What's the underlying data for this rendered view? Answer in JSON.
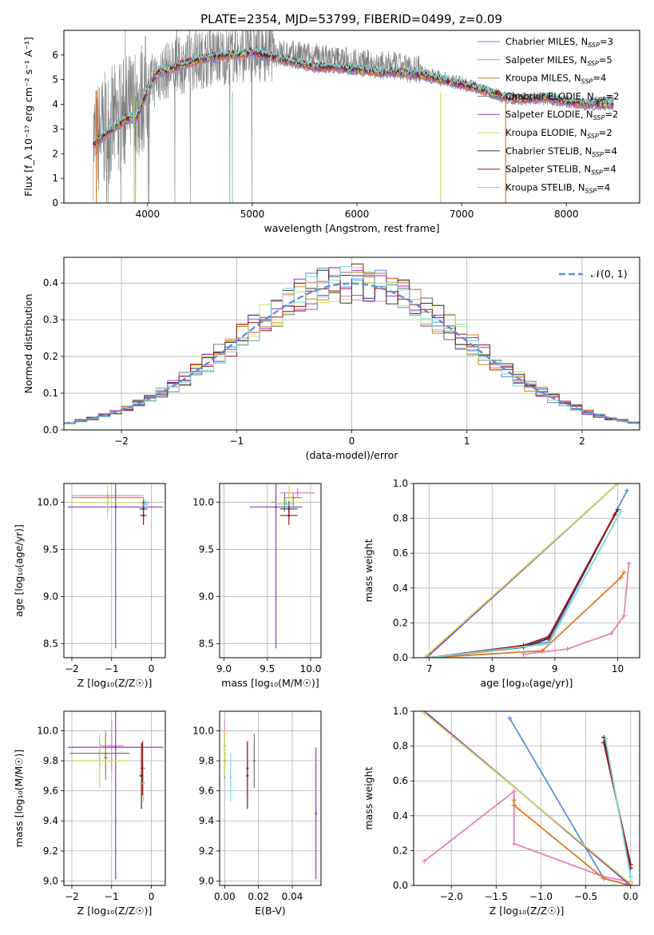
{
  "figure": {
    "title": "PLATE=2354, MJD=53799, FIBERID=0499, z=0.09"
  },
  "colors": {
    "Chabrier MILES": "#5f8fdc",
    "Salpeter MILES": "#e581bb",
    "Kroupa MILES": "#e07a1f",
    "Chabrier ELODIE": "#777777",
    "Salpeter ELODIE": "#9b30c8",
    "Kroupa ELODIE": "#c6e05a",
    "Chabrier STELIB": "#333333",
    "Salpeter STELIB": "#a01418",
    "Kroupa STELIB": "#7ed8d8"
  },
  "chart_data": [
    {
      "id": "spectrum",
      "type": "line",
      "xlabel": "wavelength [Angstrom, rest frame]",
      "ylabel": "Flux [f_λ 10⁻¹⁷ erg cm⁻² s⁻¹ A⁻¹]",
      "xlim": [
        3200,
        8700
      ],
      "ylim": [
        0,
        7
      ],
      "xticks": [
        "4000",
        "5000",
        "6000",
        "7000",
        "8000"
      ],
      "yticks": [
        "0",
        "1",
        "2",
        "3",
        "4",
        "5",
        "6"
      ],
      "legend_position": "right",
      "legend": [
        "Chabrier MILES, N_SSP=3",
        "Salpeter MILES, N_SSP=5",
        "Kroupa MILES, N_SSP=4",
        "Chabrier ELODIE, N_SSP=2",
        "Salpeter ELODIE, N_SSP=2",
        "Kroupa ELODIE, N_SSP=2",
        "Chabrier STELIB, N_SSP=4",
        "Salpeter STELIB, N_SSP=4",
        "Kroupa STELIB, N_SSP=4"
      ],
      "data_color": "#808080",
      "data": {
        "x": [
          3500,
          3600,
          3700,
          3800,
          3900,
          4000,
          4100,
          4200,
          4400,
          4600,
          4800,
          5000,
          5200,
          5400,
          5600,
          5800,
          6000,
          6200,
          6400,
          6600,
          6800,
          7000,
          7200,
          7400,
          7600,
          7800,
          8000,
          8200,
          8400
        ],
        "y": [
          2.5,
          3.0,
          3.3,
          3.7,
          3.9,
          4.7,
          5.2,
          5.4,
          5.7,
          5.9,
          6.0,
          6.1,
          6.1,
          6.0,
          5.9,
          5.8,
          5.7,
          5.6,
          5.5,
          5.4,
          5.1,
          4.9,
          4.6,
          4.3,
          4.2,
          4.2,
          4.1,
          4.0,
          4.1
        ]
      },
      "model": {
        "x": [
          3500,
          3600,
          3700,
          3800,
          3900,
          4000,
          4100,
          4200,
          4400,
          4600,
          4800,
          5000,
          5200,
          5400,
          5600,
          5800,
          6000,
          6200,
          6400,
          6600,
          6800,
          7000,
          7200,
          7400,
          7600,
          7800,
          8000,
          8200,
          8400
        ],
        "y": [
          2.4,
          2.8,
          3.1,
          3.4,
          3.5,
          4.6,
          5.3,
          5.4,
          5.7,
          5.9,
          6.0,
          6.1,
          5.9,
          5.7,
          5.5,
          5.5,
          5.4,
          5.3,
          5.3,
          5.2,
          5.0,
          4.8,
          4.6,
          4.3,
          4.2,
          4.3,
          4.1,
          4.0,
          4.0
        ]
      }
    },
    {
      "id": "residuals",
      "type": "line",
      "xlabel": "(data-model)/error",
      "ylabel": "Normed distribution",
      "xlim": [
        -2.5,
        2.5
      ],
      "ylim": [
        0,
        0.47
      ],
      "xticks": [
        "−2",
        "−1",
        "0",
        "1",
        "2"
      ],
      "yticks": [
        "0.0",
        "0.1",
        "0.2",
        "0.3",
        "0.4"
      ],
      "grid": true,
      "legend_position": "top-right",
      "legend": [
        "𝒩(0, 1)"
      ],
      "normal_curve": {
        "mean": 0,
        "sigma": 1,
        "color": "#5f8fdc"
      }
    },
    {
      "id": "age-vs-z",
      "type": "scatter",
      "xlabel": "Z [log₁₀(Z/Z☉)]",
      "ylabel": "age  [log₁₀(age/yr)]",
      "xlim": [
        -2.2,
        0.35
      ],
      "ylim": [
        8.35,
        10.2
      ],
      "xticks": [
        "−2",
        "−1",
        "0"
      ],
      "yticks": [
        "8.5",
        "9.0",
        "9.5",
        "10.0"
      ],
      "grid": true,
      "points": [
        {
          "model": "Chabrier MILES",
          "x": -0.2,
          "y": 10.0,
          "xerr": 0.15,
          "yerr": 0.05
        },
        {
          "model": "Salpeter MILES",
          "x": -1.1,
          "y": 10.07,
          "xerr": 0.9,
          "yerr": 0.05
        },
        {
          "model": "Kroupa MILES",
          "x": -1.1,
          "y": 10.05,
          "xerr": 0.9,
          "yerr": 0.05
        },
        {
          "model": "Chabrier ELODIE",
          "x": -1.1,
          "y": 10.0,
          "xerr": 0.9,
          "yerr": 0.1
        },
        {
          "model": "Salpeter ELODIE",
          "x": -0.9,
          "y": 9.95,
          "xerr": 1.2,
          "yerr": 1.5
        },
        {
          "model": "Kroupa ELODIE",
          "x": -1.1,
          "y": 10.0,
          "xerr": 0.9,
          "yerr": 0.18
        },
        {
          "model": "Chabrier STELIB",
          "x": -0.2,
          "y": 9.93,
          "xerr": 0.1,
          "yerr": 0.08
        },
        {
          "model": "Salpeter STELIB",
          "x": -0.2,
          "y": 9.86,
          "xerr": 0.08,
          "yerr": 0.1
        },
        {
          "model": "Kroupa STELIB",
          "x": -0.15,
          "y": 9.98,
          "xerr": 0.1,
          "yerr": 0.05
        }
      ]
    },
    {
      "id": "age-vs-mass",
      "type": "scatter",
      "xlabel": "mass [log₁₀(M/M☉)]",
      "ylabel": "",
      "xlim": [
        8.95,
        10.12
      ],
      "ylim": [
        8.35,
        10.2
      ],
      "xticks": [
        "9.0",
        "9.5",
        "10.0"
      ],
      "yticks": [
        "8.5",
        "9.0",
        "9.5",
        "10.0"
      ],
      "grid": true,
      "points": [
        {
          "model": "Chabrier MILES",
          "x": 9.8,
          "y": 10.0,
          "xerr": 0.1,
          "yerr": 0.05
        },
        {
          "model": "Salpeter MILES",
          "x": 9.85,
          "y": 10.1,
          "xerr": 0.2,
          "yerr": 0.05
        },
        {
          "model": "Kroupa MILES",
          "x": 9.8,
          "y": 10.05,
          "xerr": 0.1,
          "yerr": 0.05
        },
        {
          "model": "Chabrier ELODIE",
          "x": 9.7,
          "y": 10.0,
          "xerr": 0.15,
          "yerr": 0.1
        },
        {
          "model": "Salpeter ELODIE",
          "x": 9.6,
          "y": 9.95,
          "xerr": 0.3,
          "yerr": 1.5
        },
        {
          "model": "Kroupa ELODIE",
          "x": 9.75,
          "y": 10.0,
          "xerr": 0.15,
          "yerr": 0.18
        },
        {
          "model": "Chabrier STELIB",
          "x": 9.75,
          "y": 9.93,
          "xerr": 0.1,
          "yerr": 0.08
        },
        {
          "model": "Salpeter STELIB",
          "x": 9.75,
          "y": 9.86,
          "xerr": 0.1,
          "yerr": 0.1
        },
        {
          "model": "Kroupa STELIB",
          "x": 9.72,
          "y": 9.98,
          "xerr": 0.1,
          "yerr": 0.05
        }
      ]
    },
    {
      "id": "weight-vs-age",
      "type": "line",
      "xlabel": "age  [log₁₀(age/yr)]",
      "ylabel": "mass weight",
      "xlim": [
        6.75,
        10.35
      ],
      "ylim": [
        0,
        1
      ],
      "xticks": [
        "7",
        "8",
        "9",
        "10"
      ],
      "yticks": [
        "0.0",
        "0.2",
        "0.4",
        "0.6",
        "0.8",
        "1.0"
      ],
      "grid": true,
      "series": [
        {
          "name": "Chabrier MILES",
          "x": [
            7.0,
            8.9,
            10.15
          ],
          "y": [
            0.0,
            0.09,
            0.96
          ]
        },
        {
          "name": "Salpeter MILES",
          "x": [
            8.5,
            9.2,
            9.9,
            10.1,
            10.18
          ],
          "y": [
            0.02,
            0.05,
            0.14,
            0.24,
            0.54
          ]
        },
        {
          "name": "Kroupa MILES",
          "x": [
            7.0,
            8.8,
            10.05,
            10.1
          ],
          "y": [
            0.0,
            0.04,
            0.46,
            0.49
          ]
        },
        {
          "name": "Chabrier ELODIE",
          "x": [
            6.95,
            10.0
          ],
          "y": [
            0.0,
            1.0
          ]
        },
        {
          "name": "Salpeter ELODIE",
          "x": [
            6.95,
            10.0
          ],
          "y": [
            0.0,
            1.0
          ]
        },
        {
          "name": "Kroupa ELODIE",
          "x": [
            6.95,
            10.0
          ],
          "y": [
            0.01,
            1.0
          ]
        },
        {
          "name": "Chabrier STELIB",
          "x": [
            7.0,
            8.5,
            8.9,
            10.0
          ],
          "y": [
            0.0,
            0.06,
            0.11,
            0.85
          ]
        },
        {
          "name": "Salpeter STELIB",
          "x": [
            7.0,
            8.5,
            8.9,
            9.95
          ],
          "y": [
            0.0,
            0.07,
            0.12,
            0.82
          ]
        },
        {
          "name": "Kroupa STELIB",
          "x": [
            7.0,
            8.9,
            10.05
          ],
          "y": [
            0.0,
            0.08,
            0.84
          ]
        }
      ]
    },
    {
      "id": "mass-vs-z",
      "type": "scatter",
      "xlabel": "Z [log₁₀(Z/Z☉)]",
      "ylabel": "mass [log₁₀(M/M☉)]",
      "xlim": [
        -2.2,
        0.35
      ],
      "ylim": [
        8.97,
        10.13
      ],
      "xticks": [
        "−2",
        "−1",
        "0"
      ],
      "yticks": [
        "9.0",
        "9.2",
        "9.4",
        "9.6",
        "9.8",
        "10.0"
      ],
      "grid": true,
      "points": [
        {
          "model": "Chabrier MILES",
          "x": -1.15,
          "y": 9.82,
          "xerr": 0.05,
          "yerr": 0.15
        },
        {
          "model": "Salpeter MILES",
          "x": -1.0,
          "y": 9.9,
          "xerr": 0.3,
          "yerr": 0.17
        },
        {
          "model": "Kroupa MILES",
          "x": -1.15,
          "y": 9.85,
          "xerr": 0.05,
          "yerr": 0.15
        },
        {
          "model": "Chabrier ELODIE",
          "x": -1.3,
          "y": 9.85,
          "xerr": 0.75,
          "yerr": 0.1
        },
        {
          "model": "Salpeter ELODIE",
          "x": -0.9,
          "y": 9.89,
          "xerr": 1.2,
          "yerr": 0.88
        },
        {
          "model": "Kroupa ELODIE",
          "x": -1.3,
          "y": 9.8,
          "xerr": 0.75,
          "yerr": 0.18
        },
        {
          "model": "Chabrier STELIB",
          "x": -0.25,
          "y": 9.7,
          "xerr": 0.05,
          "yerr": 0.22
        },
        {
          "model": "Salpeter STELIB",
          "x": -0.22,
          "y": 9.75,
          "xerr": 0.05,
          "yerr": 0.18
        },
        {
          "model": "Kroupa STELIB",
          "x": -0.2,
          "y": 9.65,
          "xerr": 0.04,
          "yerr": 0.12
        }
      ]
    },
    {
      "id": "mass-vs-ebv",
      "type": "scatter",
      "xlabel": "E(B-V)",
      "ylabel": "",
      "xlim": [
        -0.003,
        0.057
      ],
      "ylim": [
        8.97,
        10.13
      ],
      "xticks": [
        "0.00",
        "0.02",
        "0.04"
      ],
      "yticks": [
        "9.0",
        "9.2",
        "9.4",
        "9.6",
        "9.8",
        "10.0"
      ],
      "grid": true,
      "points": [
        {
          "model": "Chabrier MILES",
          "x": 0.0,
          "y": 9.8,
          "yerr": 0.12
        },
        {
          "model": "Salpeter MILES",
          "x": 0.0,
          "y": 9.9,
          "yerr": 0.17
        },
        {
          "model": "Kroupa MILES",
          "x": 0.0,
          "y": 9.85,
          "yerr": 0.15
        },
        {
          "model": "Chabrier ELODIE",
          "x": 0.0175,
          "y": 9.8,
          "yerr": 0.18
        },
        {
          "model": "Salpeter ELODIE",
          "x": 0.054,
          "y": 9.45,
          "yerr": 0.44
        },
        {
          "model": "Kroupa ELODIE",
          "x": 0.0,
          "y": 9.85,
          "yerr": 0.15
        },
        {
          "model": "Chabrier STELIB",
          "x": 0.0135,
          "y": 9.7,
          "yerr": 0.22
        },
        {
          "model": "Salpeter STELIB",
          "x": 0.0135,
          "y": 9.75,
          "yerr": 0.18
        },
        {
          "model": "Kroupa STELIB",
          "x": 0.0035,
          "y": 9.69,
          "yerr": 0.16
        }
      ]
    },
    {
      "id": "weight-vs-z",
      "type": "line",
      "xlabel": "Z [log₁₀(Z/Z☉)]",
      "ylabel": "mass weight",
      "xlim": [
        -2.42,
        0.1
      ],
      "ylim": [
        0,
        1
      ],
      "xticks": [
        "−2.0",
        "−1.5",
        "−1.0",
        "−0.5",
        "0.0"
      ],
      "yticks": [
        "0.0",
        "0.2",
        "0.4",
        "0.6",
        "0.8",
        "1.0"
      ],
      "grid": true,
      "series": [
        {
          "name": "Chabrier MILES",
          "x": [
            -1.35,
            -0.3,
            0.0
          ],
          "y": [
            0.96,
            0.04,
            0.0
          ]
        },
        {
          "name": "Salpeter MILES",
          "x": [
            -2.3,
            -1.3,
            -1.3,
            -0.3,
            0.0
          ],
          "y": [
            0.14,
            0.54,
            0.24,
            0.05,
            0.02
          ]
        },
        {
          "name": "Kroupa MILES",
          "x": [
            -1.3,
            -1.3,
            -0.3,
            0.0
          ],
          "y": [
            0.49,
            0.46,
            0.04,
            0.0
          ]
        },
        {
          "name": "Chabrier ELODIE",
          "x": [
            -2.3,
            0.0
          ],
          "y": [
            1.0,
            0.0
          ]
        },
        {
          "name": "Salpeter ELODIE",
          "x": [
            -2.3,
            0.0
          ],
          "y": [
            1.0,
            0.0
          ]
        },
        {
          "name": "Kroupa ELODIE",
          "x": [
            -2.3,
            0.0
          ],
          "y": [
            0.99,
            0.01
          ]
        },
        {
          "name": "Chabrier STELIB",
          "x": [
            -0.3,
            0.0
          ],
          "y": [
            0.85,
            0.1
          ]
        },
        {
          "name": "Salpeter STELIB",
          "x": [
            -0.3,
            0.0
          ],
          "y": [
            0.82,
            0.12
          ]
        },
        {
          "name": "Kroupa STELIB",
          "x": [
            -0.28,
            0.0
          ],
          "y": [
            0.84,
            0.05
          ]
        }
      ]
    }
  ]
}
